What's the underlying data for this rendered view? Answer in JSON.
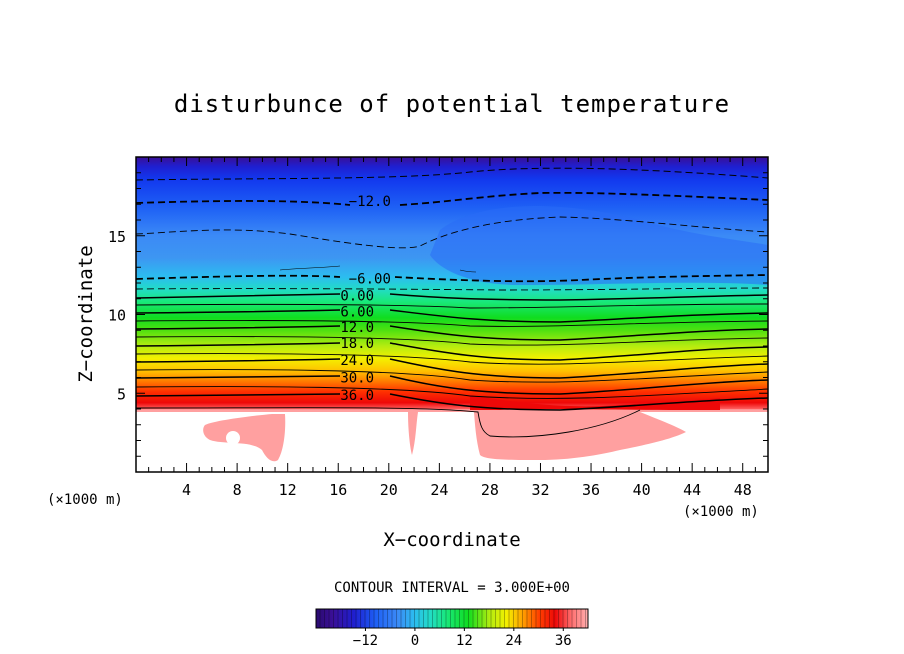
{
  "chart_data": {
    "type": "contour",
    "title": "disturbunce of potential temperature",
    "xlabel": "X−coordinate",
    "ylabel": "Z−coordinate",
    "x_unit": "(×1000 m)",
    "y_unit": "(×1000 m)",
    "xlim": [
      0,
      50
    ],
    "ylim": [
      0,
      20
    ],
    "x_ticks": [
      4,
      8,
      12,
      16,
      20,
      24,
      28,
      32,
      36,
      40,
      44,
      48
    ],
    "y_ticks": [
      5,
      10,
      15
    ],
    "contour_interval_text": "CONTOUR INTERVAL = 3.000E+00",
    "contour_interval": 3,
    "contour_labels": [
      {
        "text": "−12.0",
        "x": 18.5,
        "z": 17.2,
        "value": -12
      },
      {
        "text": "−6.00",
        "x": 18.5,
        "z": 12.3,
        "value": -6
      },
      {
        "text": "0.00",
        "x": 17.5,
        "z": 11.2,
        "value": 0
      },
      {
        "text": "6.00",
        "x": 17.5,
        "z": 10.2,
        "value": 6
      },
      {
        "text": "12.0",
        "x": 17.5,
        "z": 9.2,
        "value": 12
      },
      {
        "text": "18.0",
        "x": 17.5,
        "z": 8.2,
        "value": 18
      },
      {
        "text": "24.0",
        "x": 17.5,
        "z": 7.1,
        "value": 24
      },
      {
        "text": "30.0",
        "x": 17.5,
        "z": 6.0,
        "value": 30
      },
      {
        "text": "36.0",
        "x": 17.5,
        "z": 4.9,
        "value": 36
      }
    ],
    "colorbar": {
      "min": -24,
      "max": 42,
      "ticks": [
        {
          "label": "−12",
          "value": -12
        },
        {
          "label": "0",
          "value": 0
        },
        {
          "label": "12",
          "value": 12
        },
        {
          "label": "24",
          "value": 24
        },
        {
          "label": "36",
          "value": 36
        }
      ]
    },
    "grid": false,
    "legend": "colorbar-bottom"
  }
}
